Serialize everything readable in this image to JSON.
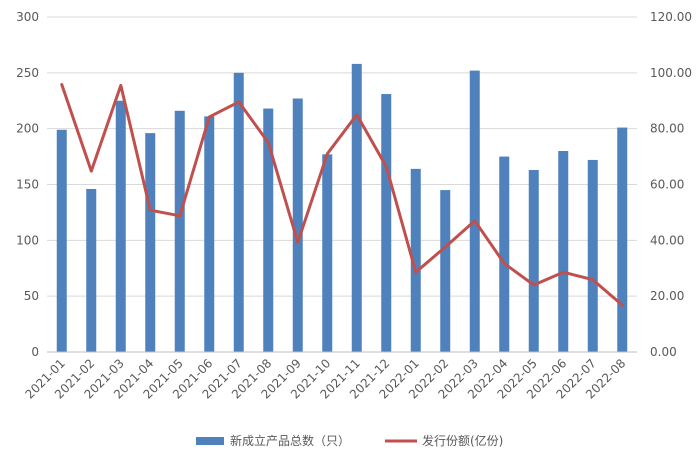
{
  "chart_data": {
    "type": "bar",
    "categories": [
      "2021-01",
      "2021-02",
      "2021-03",
      "2021-04",
      "2021-05",
      "2021-06",
      "2021-07",
      "2021-08",
      "2021-09",
      "2021-10",
      "2021-11",
      "2021-12",
      "2022-01",
      "2022-02",
      "2022-03",
      "2022-04",
      "2022-05",
      "2022-06",
      "2022-07",
      "2022-08"
    ],
    "series": [
      {
        "name": "新成立产品总数（只）",
        "type": "bar",
        "axis": "left",
        "color": "#4F81BD",
        "values": [
          199,
          146,
          225,
          196,
          216,
          211,
          250,
          218,
          227,
          177,
          258,
          231,
          164,
          145,
          252,
          175,
          163,
          180,
          172,
          201
        ]
      },
      {
        "name": "发行份额(亿份)",
        "type": "line",
        "axis": "right",
        "color": "#C0504D",
        "values": [
          95.8,
          64.8,
          95.5,
          50.8,
          48.8,
          84.2,
          89.6,
          75.0,
          39.3,
          71.0,
          85.0,
          66.4,
          28.6,
          37.6,
          47.0,
          31.7,
          24.0,
          28.6,
          25.9,
          16.8
        ]
      }
    ],
    "y_left": {
      "ylim": [
        0,
        300
      ],
      "ticks": [
        "0",
        "50",
        "100",
        "150",
        "200",
        "250",
        "300"
      ]
    },
    "y_right": {
      "ylim": [
        0,
        120
      ],
      "ticks": [
        "0.00",
        "20.00",
        "40.00",
        "60.00",
        "80.00",
        "100.00",
        "120.00"
      ]
    },
    "grid": true,
    "legend_position": "bottom"
  }
}
